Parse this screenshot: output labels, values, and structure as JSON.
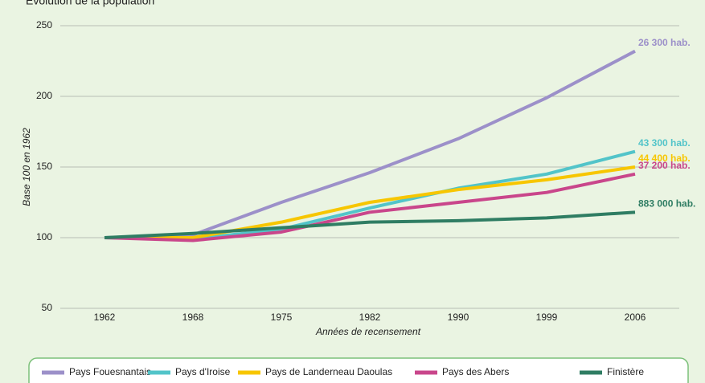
{
  "chart_data": {
    "type": "line",
    "title": "Évolution de la population",
    "xlabel": "Années de recensement",
    "ylabel": "Base 100 en 1962",
    "categories": [
      "1962",
      "1968",
      "1975",
      "1982",
      "1990",
      "1999",
      "2006"
    ],
    "ylim": [
      50,
      250
    ],
    "yticks": [
      50,
      100,
      150,
      200,
      250
    ],
    "grid": true,
    "legend": "bottom",
    "series": [
      {
        "name": "Pays Fouesnantais",
        "color": "#9c90c9",
        "values": [
          100,
          102,
          125,
          146,
          170,
          199,
          232
        ],
        "end_label": "26 300 hab."
      },
      {
        "name": "Pays d'Iroise",
        "color": "#52c4c9",
        "values": [
          100,
          99,
          106,
          121,
          135,
          145,
          161
        ],
        "end_label": "43 300 hab."
      },
      {
        "name": "Pays de Landerneau Daoulas",
        "color": "#f7c600",
        "values": [
          100,
          100,
          111,
          125,
          134,
          141,
          150
        ],
        "end_label": "44 400 hab."
      },
      {
        "name": "Pays des Abers",
        "color": "#c9468b",
        "values": [
          100,
          98,
          104,
          118,
          125,
          132,
          145
        ],
        "end_label": "37 200 hab."
      },
      {
        "name": "Finistère",
        "color": "#2f7d63",
        "values": [
          100,
          103,
          107,
          111,
          112,
          114,
          118
        ],
        "end_label": "883 000 hab."
      }
    ]
  }
}
